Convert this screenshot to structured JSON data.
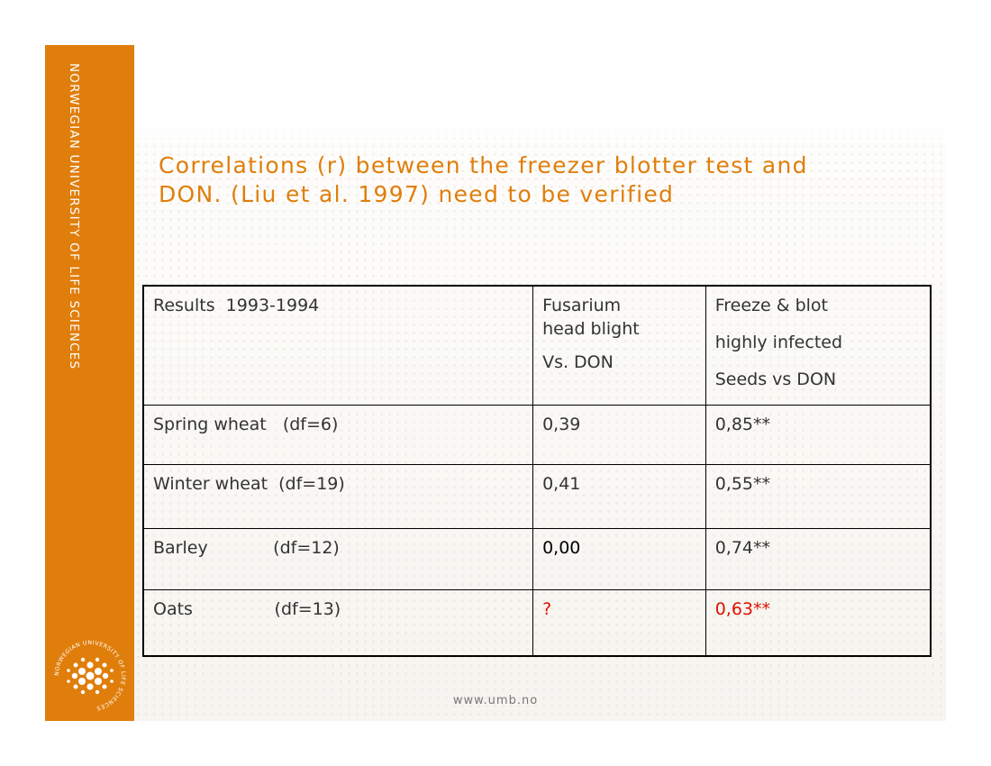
{
  "sidebar": {
    "university_text": "NORWEGIAN UNIVERSITY OF LIFE SCIENCES",
    "color": "#e07e0c",
    "logo": {
      "icon": "university-seal-icon",
      "ring_text": "NORWEGIAN UNIVERSITY OF LIFE SCIENCES"
    }
  },
  "title": {
    "line1": "Correlations (r) between the freezer blotter test and",
    "line2": "DON. (Liu et al. 1997) need to be verified",
    "color": "#e07e0c"
  },
  "table": {
    "header": {
      "col1": "Results  1993-1994",
      "col2": [
        "Fusarium",
        "head blight",
        "Vs. DON"
      ],
      "col3": [
        "Freeze & blot",
        "highly infected",
        "Seeds vs DON"
      ]
    },
    "rows": [
      {
        "label": "Spring wheat   (df=6)",
        "fhb": "0,39",
        "freeze": "0,85**"
      },
      {
        "label": "Winter wheat  (df=19)",
        "fhb": "0,41",
        "freeze": "0,55**"
      },
      {
        "label": "Barley            (df=12)",
        "fhb": "0,00",
        "freeze": "0,74**"
      },
      {
        "label": "Oats               (df=13)",
        "fhb": "?",
        "freeze": "0,63**"
      }
    ],
    "highlight_color": "#dd1100"
  },
  "footer": {
    "url": "www.umb.no"
  }
}
